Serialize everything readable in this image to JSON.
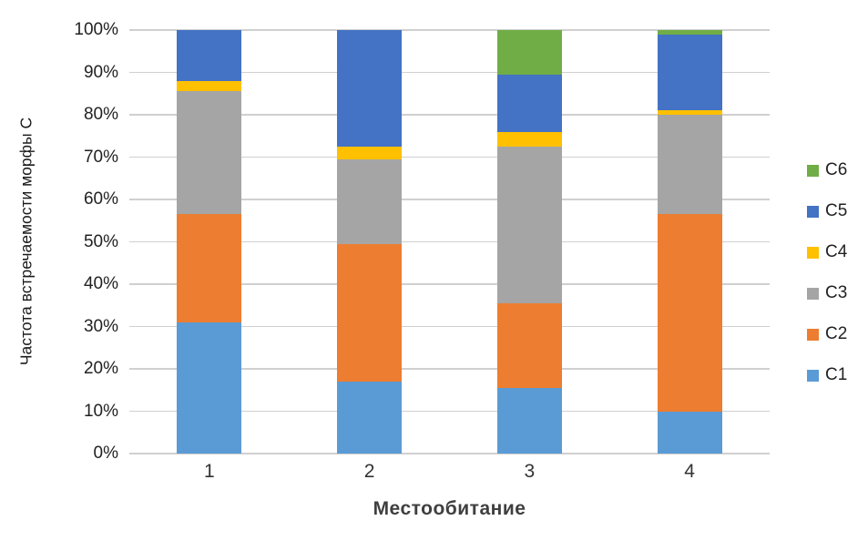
{
  "chart_data": {
    "type": "bar",
    "stacked": true,
    "percent_stacked": true,
    "title": "",
    "xlabel": "Местообитание",
    "ylabel": "Частота встречаемости морфы С",
    "categories": [
      "1",
      "2",
      "3",
      "4"
    ],
    "series": [
      {
        "name": "C1",
        "color": "#5b9bd5",
        "values": [
          31,
          17,
          15.5,
          10
        ]
      },
      {
        "name": "C2",
        "color": "#ed7d31",
        "values": [
          25.5,
          32.5,
          20,
          46.5
        ]
      },
      {
        "name": "C3",
        "color": "#a5a5a5",
        "values": [
          29,
          20,
          37,
          23.5
        ]
      },
      {
        "name": "C4",
        "color": "#ffc000",
        "values": [
          2.5,
          3,
          3.5,
          1
        ]
      },
      {
        "name": "C5",
        "color": "#4472c4",
        "values": [
          12,
          27.5,
          13.5,
          18
        ]
      },
      {
        "name": "C6",
        "color": "#70ad47",
        "values": [
          0,
          0,
          10.5,
          1
        ]
      }
    ],
    "y_ticks": [
      "0%",
      "10%",
      "20%",
      "30%",
      "40%",
      "50%",
      "60%",
      "70%",
      "80%",
      "90%",
      "100%"
    ],
    "ylim": [
      0,
      100
    ],
    "grid": true,
    "legend_position": "right",
    "legend_order": [
      "C6",
      "C5",
      "C4",
      "C3",
      "C2",
      "C1"
    ]
  },
  "style": {
    "gridline_color": "#d0d0d0",
    "tick_text_color": "#222222",
    "axis_title_color": "#3f3f3f",
    "background": "#ffffff"
  }
}
